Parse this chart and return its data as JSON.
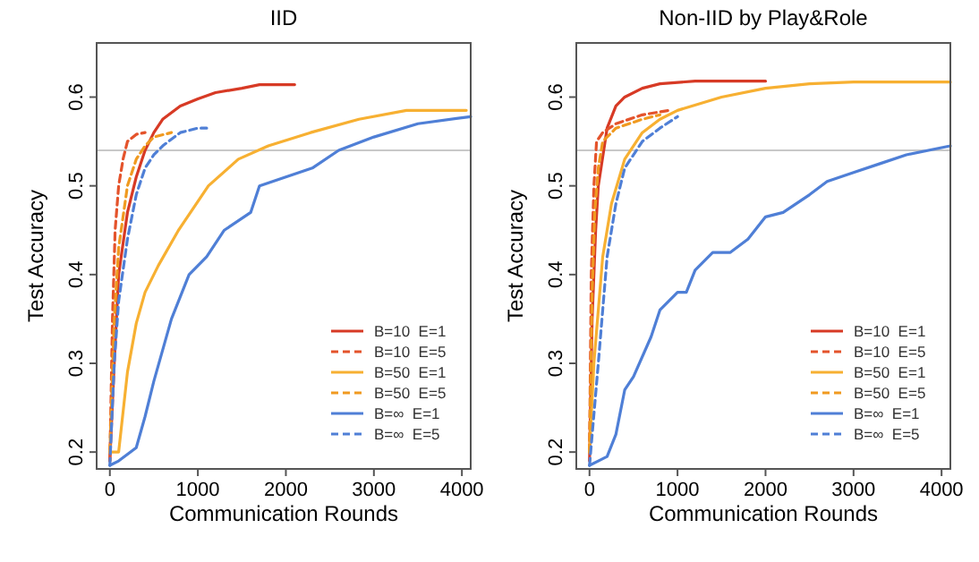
{
  "chart_data": [
    {
      "type": "line",
      "title": "IID",
      "xlabel": "Communication Rounds",
      "ylabel": "Test Accuracy",
      "xlim": [
        -150,
        4100
      ],
      "ylim": [
        0.181,
        0.661
      ],
      "xticks": [
        0,
        1000,
        2000,
        3000,
        4000
      ],
      "yticks": [
        0.2,
        0.3,
        0.4,
        0.5,
        0.6
      ],
      "legend": "bottom right",
      "grid": false,
      "ref_lines": [
        {
          "axis": "y",
          "value": 0.54,
          "color": "#c8c8c8"
        }
      ],
      "series": [
        {
          "name": "B=10  E=1",
          "color": "#d73a25",
          "line_style": "solid",
          "x": [
            0,
            50,
            100,
            200,
            300,
            400,
            500,
            600,
            800,
            1000,
            1200,
            1500,
            1700,
            2100
          ],
          "values": [
            0.19,
            0.3,
            0.4,
            0.47,
            0.51,
            0.54,
            0.56,
            0.575,
            0.59,
            0.598,
            0.605,
            0.61,
            0.614,
            0.614
          ]
        },
        {
          "name": "B=10  E=5",
          "color": "#e4532b",
          "line_style": "dashed",
          "x": [
            0,
            30,
            60,
            100,
            150,
            200,
            300,
            400
          ],
          "values": [
            0.19,
            0.35,
            0.45,
            0.5,
            0.53,
            0.55,
            0.558,
            0.56
          ]
        },
        {
          "name": "B=50  E=1",
          "color": "#f7b032",
          "line_style": "solid",
          "x": [
            0,
            100,
            200,
            300,
            400,
            550,
            780,
            1120,
            1460,
            1800,
            2280,
            2830,
            3370,
            4050
          ],
          "values": [
            0.2,
            0.2,
            0.29,
            0.345,
            0.38,
            0.41,
            0.45,
            0.5,
            0.53,
            0.545,
            0.56,
            0.575,
            0.585,
            0.585
          ]
        },
        {
          "name": "B=50  E=5",
          "color": "#f09a20",
          "line_style": "dashed",
          "x": [
            0,
            50,
            100,
            200,
            300,
            400,
            500,
            700
          ],
          "values": [
            0.2,
            0.35,
            0.43,
            0.5,
            0.53,
            0.545,
            0.555,
            0.56
          ]
        },
        {
          "name": "B=∞  E=1",
          "color": "#4f7fd6",
          "line_style": "solid",
          "x": [
            0,
            100,
            300,
            400,
            500,
            700,
            900,
            1100,
            1300,
            1600,
            1700,
            2000,
            2300,
            2600,
            3000,
            3500,
            4100
          ],
          "values": [
            0.185,
            0.19,
            0.205,
            0.24,
            0.28,
            0.35,
            0.4,
            0.42,
            0.45,
            0.47,
            0.5,
            0.51,
            0.52,
            0.54,
            0.555,
            0.57,
            0.578
          ]
        },
        {
          "name": "B=∞  E=5",
          "color": "#4f7fd6",
          "line_style": "dashed",
          "x": [
            0,
            50,
            100,
            200,
            300,
            400,
            500,
            600,
            800,
            1000,
            1100
          ],
          "values": [
            0.185,
            0.3,
            0.37,
            0.44,
            0.49,
            0.52,
            0.535,
            0.545,
            0.56,
            0.565,
            0.565
          ]
        }
      ]
    },
    {
      "type": "line",
      "title": "Non-IID by Play&Role",
      "xlabel": "Communication Rounds",
      "ylabel": "Test Accuracy",
      "xlim": [
        -150,
        4100
      ],
      "ylim": [
        0.181,
        0.661
      ],
      "xticks": [
        0,
        1000,
        2000,
        3000,
        4000
      ],
      "yticks": [
        0.2,
        0.3,
        0.4,
        0.5,
        0.6
      ],
      "legend": "bottom right",
      "grid": false,
      "ref_lines": [
        {
          "axis": "y",
          "value": 0.54,
          "color": "#c8c8c8"
        }
      ],
      "series": [
        {
          "name": "B=10  E=1",
          "color": "#d73a25",
          "line_style": "solid",
          "x": [
            0,
            30,
            70,
            100,
            200,
            300,
            400,
            600,
            800,
            1200,
            2000
          ],
          "values": [
            0.19,
            0.35,
            0.45,
            0.5,
            0.565,
            0.59,
            0.6,
            0.61,
            0.615,
            0.618,
            0.618
          ]
        },
        {
          "name": "B=10  E=5",
          "color": "#e4532b",
          "line_style": "dashed",
          "x": [
            0,
            20,
            50,
            80,
            150,
            300,
            600,
            900
          ],
          "values": [
            0.2,
            0.4,
            0.5,
            0.55,
            0.56,
            0.57,
            0.58,
            0.585
          ]
        },
        {
          "name": "B=50  E=1",
          "color": "#f7b032",
          "line_style": "solid",
          "x": [
            0,
            50,
            150,
            250,
            400,
            600,
            800,
            1000,
            1500,
            2000,
            2500,
            3000,
            4100
          ],
          "values": [
            0.2,
            0.3,
            0.42,
            0.48,
            0.53,
            0.56,
            0.575,
            0.585,
            0.6,
            0.61,
            0.615,
            0.617,
            0.617
          ]
        },
        {
          "name": "B=50  E=5",
          "color": "#f09a20",
          "line_style": "dashed",
          "x": [
            0,
            30,
            60,
            100,
            150,
            300,
            600,
            800
          ],
          "values": [
            0.2,
            0.38,
            0.47,
            0.52,
            0.55,
            0.565,
            0.575,
            0.58
          ]
        },
        {
          "name": "B=∞  E=1",
          "color": "#4f7fd6",
          "line_style": "solid",
          "x": [
            0,
            100,
            200,
            300,
            400,
            500,
            700,
            800,
            1000,
            1100,
            1200,
            1400,
            1600,
            1800,
            2000,
            2200,
            2500,
            2700,
            3000,
            3300,
            3600,
            4100
          ],
          "values": [
            0.185,
            0.19,
            0.195,
            0.22,
            0.27,
            0.285,
            0.33,
            0.36,
            0.38,
            0.38,
            0.405,
            0.425,
            0.425,
            0.44,
            0.465,
            0.47,
            0.49,
            0.505,
            0.515,
            0.525,
            0.535,
            0.545
          ]
        },
        {
          "name": "B=∞  E=5",
          "color": "#4f7fd6",
          "line_style": "dashed",
          "x": [
            0,
            100,
            200,
            300,
            400,
            600,
            800,
            1000
          ],
          "values": [
            0.185,
            0.3,
            0.42,
            0.48,
            0.52,
            0.55,
            0.565,
            0.578
          ]
        }
      ]
    }
  ]
}
